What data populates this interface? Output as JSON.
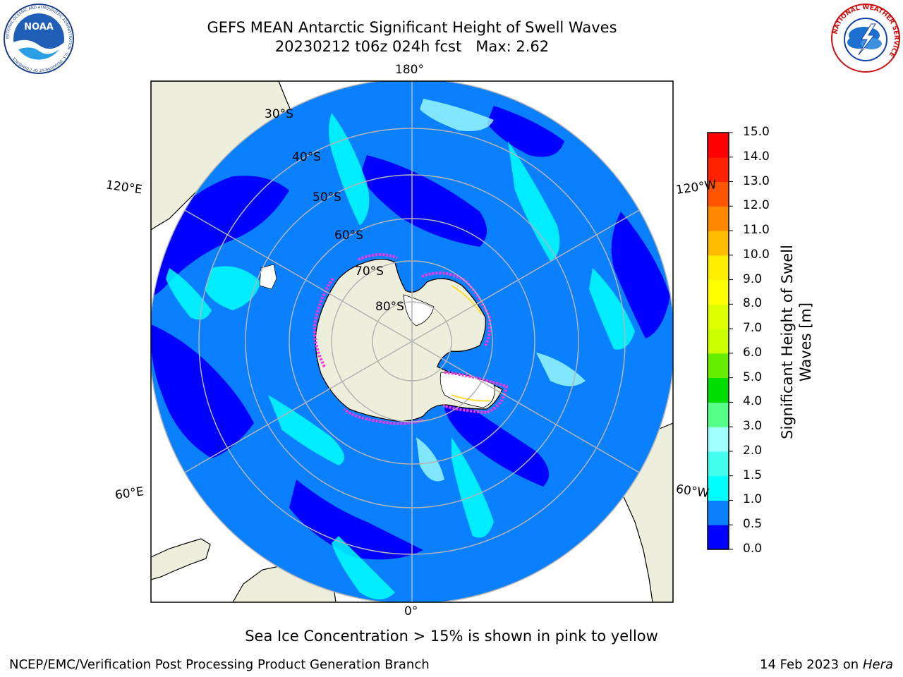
{
  "title": {
    "line1": "GEFS MEAN Antarctic Significant Height of Swell Waves",
    "line2": "20230212 t06z 024h fcst   Max: 2.62"
  },
  "logos": {
    "noaa": {
      "text": "NOAA",
      "ring_text": "NATIONAL OCEANIC AND ATMOSPHERIC ADMINISTRATION · U.S. DEPARTMENT OF COMMERCE"
    },
    "nws": {
      "ring_text": "NATIONAL WEATHER SERVICE"
    }
  },
  "map": {
    "projection": "south-polar-stereographic",
    "longitude_labels": {
      "top": "180°",
      "bottom": "0°",
      "upper_left": "120°E",
      "lower_left": "60°E",
      "upper_right": "120°W",
      "lower_right": "60°W"
    },
    "latitude_labels": [
      "30°S",
      "40°S",
      "50°S",
      "60°S",
      "70°S",
      "80°S"
    ],
    "colors": {
      "land": "#eeeedc",
      "ocean_base": "#0a80ff",
      "coast": "#000000",
      "grid": "#b4b4b4",
      "sea_ice": "#ff33dd"
    }
  },
  "colorbar": {
    "label": "Significant Height of Swell Waves [m]",
    "label_line1": "Significant Height of Swell",
    "label_line2": "Waves [m]",
    "ticks": [
      "0.0",
      "0.5",
      "1.0",
      "1.5",
      "2.0",
      "3.0",
      "4.0",
      "5.0",
      "6.0",
      "7.0",
      "8.0",
      "9.0",
      "10.0",
      "11.0",
      "12.0",
      "13.0",
      "14.0",
      "15.0"
    ],
    "colors": [
      "#0000ff",
      "#0a80ff",
      "#00ffff",
      "#44ffee",
      "#a0ffff",
      "#55ff88",
      "#00dd00",
      "#66ee00",
      "#ccff00",
      "#ddff00",
      "#ffff00",
      "#ffee00",
      "#ffbb00",
      "#ff8800",
      "#ff5500",
      "#ff2200",
      "#ff0000"
    ]
  },
  "footer": {
    "note": "Sea Ice Concentration > 15% is shown in pink to yellow",
    "credit": "NCEP/EMC/Verification Post Processing Product Generation Branch",
    "date": "14 Feb 2023 on",
    "system": "Hera"
  }
}
